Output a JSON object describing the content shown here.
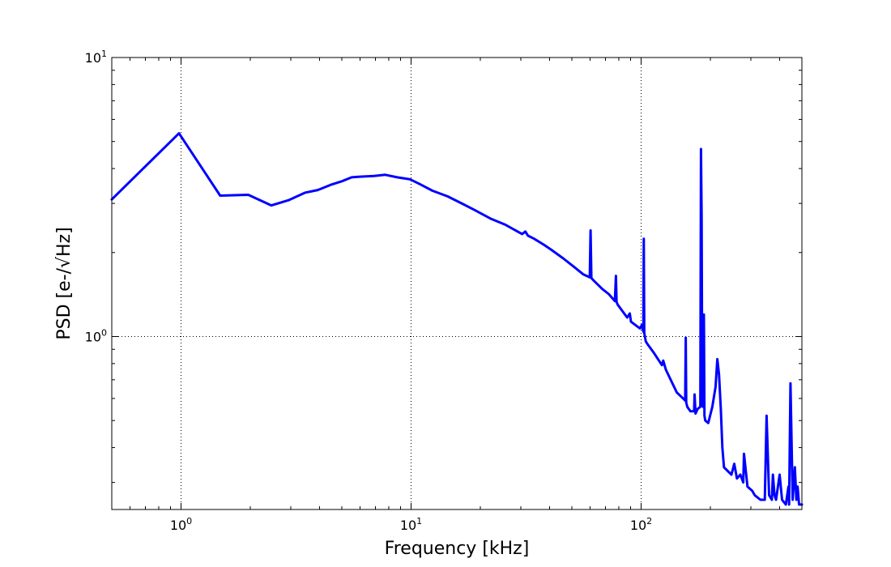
{
  "chart_data": {
    "type": "line",
    "xscale": "log",
    "yscale": "log",
    "xlabel": "Frequency [kHz]",
    "ylabel": "PSD [e-/√Hz]",
    "xlim": [
      0.5,
      500
    ],
    "ylim": [
      0.24,
      10
    ],
    "grid": true,
    "line_color": "#0000ff",
    "x_major_ticks": [
      {
        "value": 1,
        "base": "10",
        "exp": "0"
      },
      {
        "value": 10,
        "base": "10",
        "exp": "1"
      },
      {
        "value": 100,
        "base": "10",
        "exp": "2"
      }
    ],
    "y_major_ticks": [
      {
        "value": 1,
        "base": "10",
        "exp": "0"
      },
      {
        "value": 10,
        "base": "10",
        "exp": "1"
      }
    ],
    "series": [
      {
        "x": [
          0.5,
          0.98,
          1.48,
          1.96,
          2.47,
          2.93,
          3.47,
          3.93,
          4.48,
          5.0,
          5.52,
          6.0,
          6.9,
          7.72,
          8.7,
          9.9,
          10.9,
          12.4,
          14.4,
          16.6,
          18.9,
          22.1,
          25.6,
          30.4,
          31.4,
          32.2,
          34.3,
          37.9,
          40.6,
          46.1,
          51.4,
          56.1,
          59.8,
          60.3,
          60.8,
          62.6,
          67.8,
          72.3,
          76.9,
          77.7,
          78.2,
          79.1,
          87.0,
          89.3,
          90.4,
          98.8,
          100.7,
          102.3,
          102.7,
          103.2,
          104.8,
          107.5,
          114.0,
          123.2,
          124.8,
          128.2,
          143.0,
          155.5,
          156.3,
          157.1,
          158.8,
          163.8,
          170.0,
          170.8,
          172.5,
          176.1,
          180.9,
          182.1,
          183.3,
          184.5,
          185.5,
          187.5,
          188.6,
          190.1,
          195.9,
          204.0,
          210.6,
          214.5,
          218.2,
          222.1,
          225.6,
          229.2,
          247.0,
          254.0,
          261.0,
          270.0,
          278.0,
          280.0,
          290.0,
          304.0,
          312.0,
          330.0,
          345.0,
          351.0,
          360.0,
          370.0,
          374.0,
          380.0,
          386.0,
          400.0,
          410.0,
          426.0,
          437.0,
          440.0,
          446.0,
          456.0,
          466.0,
          473.0,
          479.0,
          486.0,
          500.0
        ],
        "y": [
          3.1,
          5.35,
          3.2,
          3.22,
          2.95,
          3.08,
          3.28,
          3.35,
          3.5,
          3.6,
          3.72,
          3.74,
          3.76,
          3.8,
          3.72,
          3.66,
          3.52,
          3.33,
          3.18,
          3.0,
          2.84,
          2.65,
          2.52,
          2.33,
          2.38,
          2.3,
          2.24,
          2.13,
          2.05,
          1.9,
          1.77,
          1.67,
          1.63,
          2.4,
          1.62,
          1.58,
          1.48,
          1.42,
          1.34,
          1.65,
          1.33,
          1.3,
          1.17,
          1.21,
          1.13,
          1.07,
          1.1,
          1.04,
          2.24,
          1.03,
          0.96,
          0.93,
          0.87,
          0.79,
          0.82,
          0.76,
          0.63,
          0.59,
          0.99,
          0.58,
          0.56,
          0.54,
          0.54,
          0.62,
          0.53,
          0.55,
          0.56,
          4.7,
          2.7,
          0.6,
          0.56,
          1.2,
          0.52,
          0.5,
          0.49,
          0.56,
          0.66,
          0.83,
          0.73,
          0.55,
          0.4,
          0.34,
          0.32,
          0.35,
          0.31,
          0.32,
          0.3,
          0.38,
          0.29,
          0.28,
          0.27,
          0.26,
          0.26,
          0.52,
          0.27,
          0.26,
          0.32,
          0.27,
          0.26,
          0.32,
          0.26,
          0.25,
          0.29,
          0.25,
          0.68,
          0.26,
          0.34,
          0.26,
          0.29,
          0.25,
          0.25
        ]
      }
    ]
  }
}
